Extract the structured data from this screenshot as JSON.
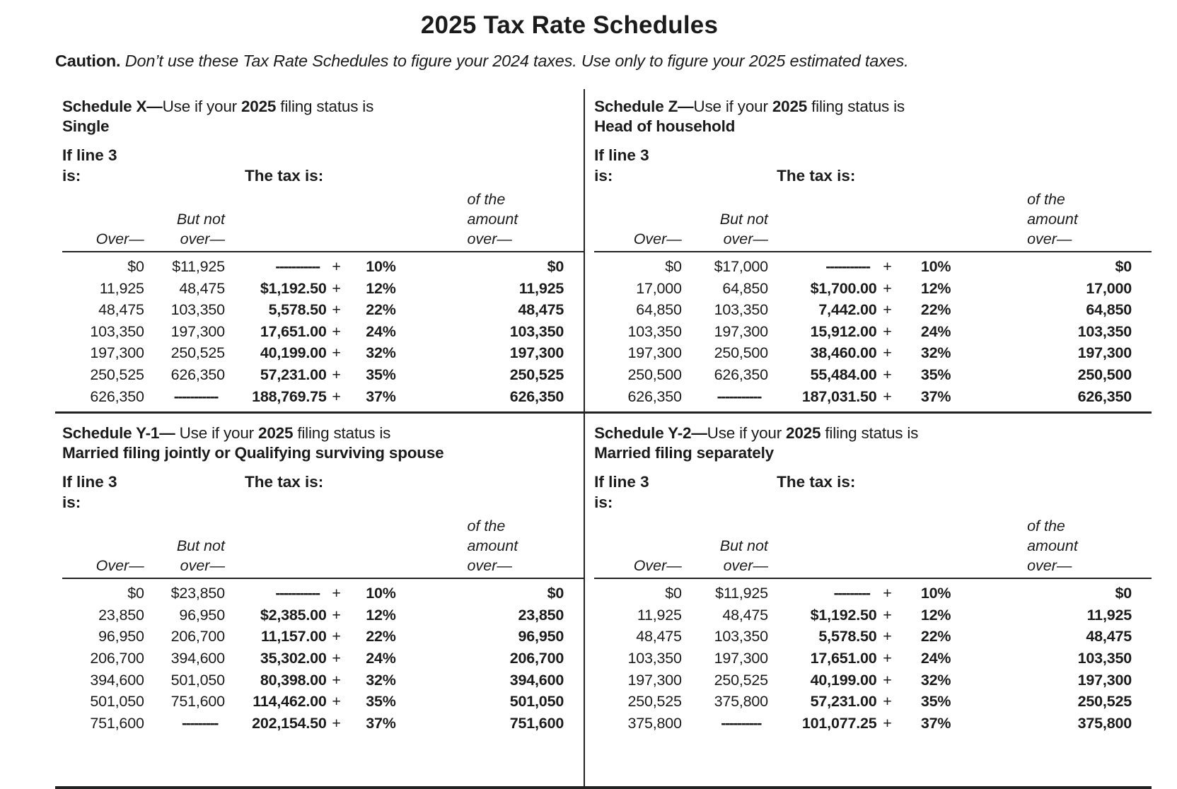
{
  "page": {
    "title": "2025 Tax Rate Schedules",
    "caution_label": "Caution.",
    "caution_text": " Don’t use these Tax Rate Schedules to figure your 2024 taxes. Use only to figure your 2025 estimated taxes."
  },
  "table_headers": {
    "if_line_1": "If line 3",
    "if_line_2": "is:",
    "tax_is": "The tax is:",
    "over": "Over—",
    "but_not_1": "But not",
    "but_not_2": "over—",
    "amount_1": "of the",
    "amount_2": "amount",
    "amount_3": "over—",
    "plus": "+"
  },
  "schedules": [
    {
      "id": "schedule-x",
      "heading_bold": "Schedule X—",
      "heading_mid": "Use if your ",
      "heading_year": "2025",
      "heading_tail": " filing status is",
      "status": "Single",
      "tax_label_line": "second",
      "rows": [
        {
          "over": "$0",
          "but_not": "$11,925",
          "tax": "-----------",
          "rate": "10%",
          "amount_over": "$0"
        },
        {
          "over": "11,925",
          "but_not": "48,475",
          "tax": "$1,192.50",
          "rate": "12%",
          "amount_over": "11,925"
        },
        {
          "over": "48,475",
          "but_not": "103,350",
          "tax": "5,578.50",
          "rate": "22%",
          "amount_over": "48,475"
        },
        {
          "over": "103,350",
          "but_not": "197,300",
          "tax": "17,651.00",
          "rate": "24%",
          "amount_over": "103,350"
        },
        {
          "over": "197,300",
          "but_not": "250,525",
          "tax": "40,199.00",
          "rate": "32%",
          "amount_over": "197,300"
        },
        {
          "over": "250,525",
          "but_not": "626,350",
          "tax": "57,231.00",
          "rate": "35%",
          "amount_over": "250,525"
        },
        {
          "over": "626,350",
          "but_not": "-----------",
          "tax": "188,769.75",
          "rate": "37%",
          "amount_over": "626,350"
        }
      ]
    },
    {
      "id": "schedule-z",
      "heading_bold": "Schedule Z—",
      "heading_mid": "Use if your ",
      "heading_year": "2025",
      "heading_tail": " filing status is",
      "status": "Head of household",
      "tax_label_line": "second",
      "rows": [
        {
          "over": "$0",
          "but_not": "$17,000",
          "tax": "-----------",
          "rate": "10%",
          "amount_over": "$0"
        },
        {
          "over": "17,000",
          "but_not": "64,850",
          "tax": "$1,700.00",
          "rate": "12%",
          "amount_over": "17,000"
        },
        {
          "over": "64,850",
          "but_not": "103,350",
          "tax": "7,442.00",
          "rate": "22%",
          "amount_over": "64,850"
        },
        {
          "over": "103,350",
          "but_not": "197,300",
          "tax": "15,912.00",
          "rate": "24%",
          "amount_over": "103,350"
        },
        {
          "over": "197,300",
          "but_not": "250,500",
          "tax": "38,460.00",
          "rate": "32%",
          "amount_over": "197,300"
        },
        {
          "over": "250,500",
          "but_not": "626,350",
          "tax": "55,484.00",
          "rate": "35%",
          "amount_over": "250,500"
        },
        {
          "over": "626,350",
          "but_not": "-----------",
          "tax": "187,031.50",
          "rate": "37%",
          "amount_over": "626,350"
        }
      ]
    },
    {
      "id": "schedule-y1",
      "heading_bold": "Schedule Y-1—",
      "heading_mid": " Use if your ",
      "heading_year": "2025",
      "heading_tail": " filing status is",
      "status": "Married filing jointly or Qualifying surviving spouse",
      "tax_label_line": "first",
      "rows": [
        {
          "over": "$0",
          "but_not": "$23,850",
          "tax": "-----------",
          "rate": "10%",
          "amount_over": "$0"
        },
        {
          "over": "23,850",
          "but_not": "96,950",
          "tax": "$2,385.00",
          "rate": "12%",
          "amount_over": "23,850"
        },
        {
          "over": "96,950",
          "but_not": "206,700",
          "tax": "11,157.00",
          "rate": "22%",
          "amount_over": "96,950"
        },
        {
          "over": "206,700",
          "but_not": "394,600",
          "tax": "35,302.00",
          "rate": "24%",
          "amount_over": "206,700"
        },
        {
          "over": "394,600",
          "but_not": "501,050",
          "tax": "80,398.00",
          "rate": "32%",
          "amount_over": "394,600"
        },
        {
          "over": "501,050",
          "but_not": "751,600",
          "tax": "114,462.00",
          "rate": "35%",
          "amount_over": "501,050"
        },
        {
          "over": "751,600",
          "but_not": "---------",
          "tax": "202,154.50",
          "rate": "37%",
          "amount_over": "751,600"
        }
      ]
    },
    {
      "id": "schedule-y2",
      "heading_bold": "Schedule Y-2—",
      "heading_mid": "Use if your ",
      "heading_year": "2025",
      "heading_tail": " filing status is",
      "status": "Married filing separately",
      "tax_label_line": "first",
      "rows": [
        {
          "over": "$0",
          "but_not": "$11,925",
          "tax": "---------",
          "rate": "10%",
          "amount_over": "$0"
        },
        {
          "over": "11,925",
          "but_not": "48,475",
          "tax": "$1,192.50",
          "rate": "12%",
          "amount_over": "11,925"
        },
        {
          "over": "48,475",
          "but_not": "103,350",
          "tax": "5,578.50",
          "rate": "22%",
          "amount_over": "48,475"
        },
        {
          "over": "103,350",
          "but_not": "197,300",
          "tax": "17,651.00",
          "rate": "24%",
          "amount_over": "103,350"
        },
        {
          "over": "197,300",
          "but_not": "250,525",
          "tax": "40,199.00",
          "rate": "32%",
          "amount_over": "197,300"
        },
        {
          "over": "250,525",
          "but_not": "375,800",
          "tax": "57,231.00",
          "rate": "35%",
          "amount_over": "250,525"
        },
        {
          "over": "375,800",
          "but_not": "----------",
          "tax": "101,077.25",
          "rate": "37%",
          "amount_over": "375,800"
        }
      ]
    }
  ]
}
